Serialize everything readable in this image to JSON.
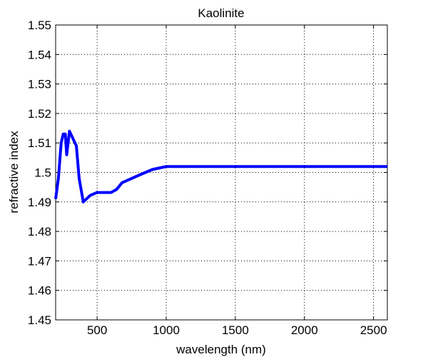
{
  "chart_data": {
    "type": "line",
    "title": "Kaolinite",
    "xlabel": "wavelength (nm)",
    "ylabel": "refractive index",
    "xlim": [
      200,
      2600
    ],
    "ylim": [
      1.45,
      1.55
    ],
    "xticks": [
      500,
      1000,
      1500,
      2000,
      2500
    ],
    "xtick_labels": [
      "500",
      "1000",
      "1500",
      "2000",
      "2500"
    ],
    "yticks": [
      1.45,
      1.46,
      1.47,
      1.48,
      1.49,
      1.5,
      1.51,
      1.52,
      1.53,
      1.54,
      1.55
    ],
    "ytick_labels": [
      "1.45",
      "1.46",
      "1.47",
      "1.48",
      "1.49",
      "1.5",
      "1.51",
      "1.52",
      "1.53",
      "1.54",
      "1.55"
    ],
    "grid": true,
    "line_color": "#0000ff",
    "series": [
      {
        "x": [
          200,
          220,
          240,
          255,
          270,
          280,
          300,
          350,
          370,
          400,
          450,
          500,
          600,
          640,
          680,
          800,
          900,
          1000,
          2600
        ],
        "y": [
          1.491,
          1.498,
          1.51,
          1.513,
          1.513,
          1.506,
          1.514,
          1.509,
          1.498,
          1.49,
          1.4922,
          1.4932,
          1.4932,
          1.4942,
          1.4965,
          1.499,
          1.501,
          1.502,
          1.502
        ]
      }
    ]
  }
}
